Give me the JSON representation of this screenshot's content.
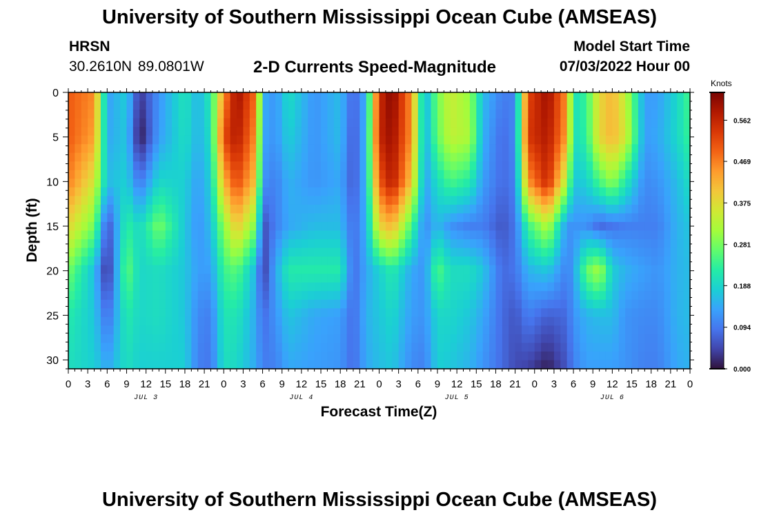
{
  "header": {
    "main_title": "University of Southern Mississippi Ocean Cube (AMSEAS)",
    "station": "HRSN",
    "coords": "30.2610N  89.0801W",
    "plot_title": "2-D Currents Speed-Magnitude",
    "model_start_label": "Model Start Time",
    "model_start_value": "07/03/2022 Hour 00"
  },
  "footer": {
    "title": "University of Southern Mississippi Ocean Cube (AMSEAS)"
  },
  "chart_data": {
    "type": "heatmap",
    "title": "2-D Currents Speed-Magnitude",
    "xlabel": "Forecast Time(Z)",
    "ylabel": "Depth (ft)",
    "x_unit": "forecast hour from 07/03/2022 00Z",
    "xlim": [
      0,
      96
    ],
    "ylim": [
      0,
      31
    ],
    "y_inverted": true,
    "x_tick_labels": [
      "0",
      "3",
      "6",
      "9",
      "12",
      "15",
      "18",
      "21",
      "0",
      "3",
      "6",
      "9",
      "12",
      "15",
      "18",
      "21",
      "0",
      "3",
      "6",
      "9",
      "12",
      "15",
      "18",
      "21",
      "0",
      "3",
      "6",
      "9",
      "12",
      "15",
      "18",
      "21",
      "0"
    ],
    "x_tick_hours": [
      0,
      3,
      6,
      9,
      12,
      15,
      18,
      21,
      24,
      27,
      30,
      33,
      36,
      39,
      42,
      45,
      48,
      51,
      54,
      57,
      60,
      63,
      66,
      69,
      72,
      75,
      78,
      81,
      84,
      87,
      90,
      93,
      96
    ],
    "y_ticks": [
      0,
      5,
      10,
      15,
      20,
      25,
      30
    ],
    "day_labels": [
      {
        "hour": 12,
        "text": "JUL 3"
      },
      {
        "hour": 36,
        "text": "JUL 4"
      },
      {
        "hour": 60,
        "text": "JUL 5"
      },
      {
        "hour": 84,
        "text": "JUL 6"
      }
    ],
    "colorbar": {
      "unit": "Knots",
      "min": 0,
      "max": 0.625,
      "ticks": [
        "0.562",
        "0.469",
        "0.375",
        "0.281",
        "0.188",
        "0.094",
        "0.000"
      ],
      "tick_values": [
        0.562,
        0.469,
        0.375,
        0.281,
        0.188,
        0.094,
        0.0
      ],
      "colormap": [
        "#30123b",
        "#4145ab",
        "#4675ed",
        "#39a2fc",
        "#1bcfd4",
        "#24eca6",
        "#61fc6c",
        "#a4fc3b",
        "#d1e834",
        "#f3c63a",
        "#fe9b2d",
        "#f36315",
        "#d93806",
        "#b11901",
        "#7a0402"
      ]
    },
    "depth_profiles": {
      "depth_ft": [
        0,
        5,
        10,
        15,
        20,
        25,
        31
      ],
      "series": [
        {
          "hour": 0,
          "speed": [
            0.5,
            0.5,
            0.47,
            0.38,
            0.28,
            0.22,
            0.2
          ]
        },
        {
          "hour": 4,
          "speed": [
            0.46,
            0.44,
            0.36,
            0.28,
            0.16,
            0.17,
            0.18
          ]
        },
        {
          "hour": 6,
          "speed": [
            0.13,
            0.14,
            0.16,
            0.05,
            0.02,
            0.08,
            0.14
          ]
        },
        {
          "hour": 9,
          "speed": [
            0.18,
            0.17,
            0.18,
            0.23,
            0.27,
            0.22,
            0.2
          ]
        },
        {
          "hour": 11,
          "speed": [
            0.03,
            0.0,
            0.09,
            0.19,
            0.19,
            0.19,
            0.18
          ]
        },
        {
          "hour": 14,
          "speed": [
            0.12,
            0.13,
            0.19,
            0.28,
            0.2,
            0.2,
            0.18
          ]
        },
        {
          "hour": 18,
          "speed": [
            0.21,
            0.2,
            0.18,
            0.17,
            0.17,
            0.17,
            0.18
          ]
        },
        {
          "hour": 20,
          "speed": [
            0.15,
            0.15,
            0.13,
            0.12,
            0.13,
            0.11,
            0.1
          ]
        },
        {
          "hour": 22,
          "speed": [
            0.22,
            0.2,
            0.18,
            0.16,
            0.13,
            0.1,
            0.09
          ]
        },
        {
          "hour": 24,
          "speed": [
            0.45,
            0.52,
            0.42,
            0.3,
            0.24,
            0.21,
            0.2
          ]
        },
        {
          "hour": 26,
          "speed": [
            0.6,
            0.58,
            0.52,
            0.4,
            0.26,
            0.21,
            0.19
          ]
        },
        {
          "hour": 29,
          "speed": [
            0.48,
            0.45,
            0.4,
            0.28,
            0.15,
            0.14,
            0.14
          ]
        },
        {
          "hour": 30,
          "speed": [
            0.15,
            0.14,
            0.12,
            0.05,
            0.03,
            0.08,
            0.1
          ]
        },
        {
          "hour": 32,
          "speed": [
            0.12,
            0.12,
            0.1,
            0.1,
            0.14,
            0.12,
            0.1
          ]
        },
        {
          "hour": 34,
          "speed": [
            0.2,
            0.18,
            0.15,
            0.14,
            0.22,
            0.17,
            0.14
          ]
        },
        {
          "hour": 38,
          "speed": [
            0.12,
            0.12,
            0.12,
            0.16,
            0.22,
            0.14,
            0.13
          ]
        },
        {
          "hour": 42,
          "speed": [
            0.16,
            0.16,
            0.14,
            0.16,
            0.22,
            0.13,
            0.12
          ]
        },
        {
          "hour": 44,
          "speed": [
            0.07,
            0.06,
            0.06,
            0.08,
            0.08,
            0.08,
            0.08
          ]
        },
        {
          "hour": 46,
          "speed": [
            0.15,
            0.16,
            0.16,
            0.15,
            0.14,
            0.15,
            0.14
          ]
        },
        {
          "hour": 48,
          "speed": [
            0.55,
            0.56,
            0.5,
            0.38,
            0.18,
            0.17,
            0.16
          ]
        },
        {
          "hour": 50,
          "speed": [
            0.62,
            0.6,
            0.58,
            0.42,
            0.22,
            0.19,
            0.17
          ]
        },
        {
          "hour": 53,
          "speed": [
            0.45,
            0.45,
            0.4,
            0.25,
            0.14,
            0.13,
            0.11
          ]
        },
        {
          "hour": 55,
          "speed": [
            0.14,
            0.14,
            0.13,
            0.11,
            0.12,
            0.12,
            0.1
          ]
        },
        {
          "hour": 57,
          "speed": [
            0.28,
            0.27,
            0.2,
            0.16,
            0.26,
            0.19,
            0.18
          ]
        },
        {
          "hour": 59,
          "speed": [
            0.35,
            0.34,
            0.25,
            0.12,
            0.2,
            0.19,
            0.17
          ]
        },
        {
          "hour": 62,
          "speed": [
            0.3,
            0.32,
            0.22,
            0.1,
            0.2,
            0.17,
            0.15
          ]
        },
        {
          "hour": 64,
          "speed": [
            0.16,
            0.15,
            0.13,
            0.1,
            0.17,
            0.14,
            0.12
          ]
        },
        {
          "hour": 67,
          "speed": [
            0.1,
            0.08,
            0.08,
            0.06,
            0.08,
            0.08,
            0.08
          ]
        },
        {
          "hour": 69,
          "speed": [
            0.1,
            0.11,
            0.1,
            0.09,
            0.09,
            0.06,
            0.05
          ]
        },
        {
          "hour": 71,
          "speed": [
            0.52,
            0.54,
            0.45,
            0.24,
            0.15,
            0.1,
            0.04
          ]
        },
        {
          "hour": 74,
          "speed": [
            0.6,
            0.58,
            0.56,
            0.33,
            0.17,
            0.07,
            0.01
          ]
        },
        {
          "hour": 77,
          "speed": [
            0.45,
            0.44,
            0.32,
            0.12,
            0.1,
            0.08,
            0.06
          ]
        },
        {
          "hour": 78,
          "speed": [
            0.2,
            0.2,
            0.17,
            0.12,
            0.13,
            0.12,
            0.1
          ]
        },
        {
          "hour": 80,
          "speed": [
            0.24,
            0.23,
            0.18,
            0.12,
            0.27,
            0.15,
            0.13
          ]
        },
        {
          "hour": 82,
          "speed": [
            0.38,
            0.38,
            0.25,
            0.08,
            0.32,
            0.16,
            0.13
          ]
        },
        {
          "hour": 84,
          "speed": [
            0.42,
            0.42,
            0.3,
            0.09,
            0.18,
            0.16,
            0.13
          ]
        },
        {
          "hour": 86,
          "speed": [
            0.34,
            0.36,
            0.22,
            0.1,
            0.15,
            0.12,
            0.12
          ]
        },
        {
          "hour": 89,
          "speed": [
            0.13,
            0.13,
            0.11,
            0.1,
            0.13,
            0.11,
            0.1
          ]
        },
        {
          "hour": 91,
          "speed": [
            0.13,
            0.14,
            0.12,
            0.1,
            0.12,
            0.11,
            0.1
          ]
        },
        {
          "hour": 94,
          "speed": [
            0.19,
            0.19,
            0.16,
            0.15,
            0.15,
            0.15,
            0.14
          ]
        },
        {
          "hour": 96,
          "speed": [
            0.25,
            0.24,
            0.2,
            0.17,
            0.16,
            0.16,
            0.15
          ]
        }
      ]
    }
  }
}
